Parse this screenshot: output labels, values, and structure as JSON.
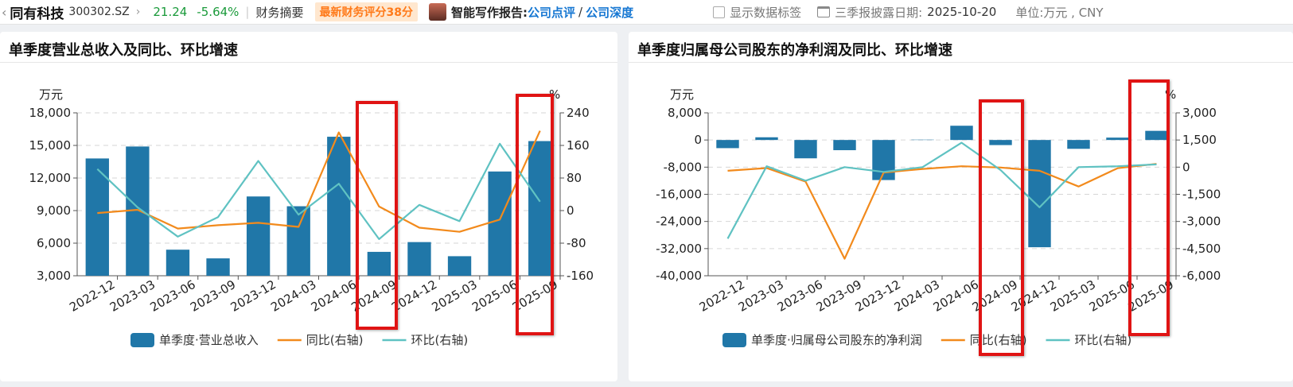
{
  "header": {
    "back_icon": "chevron-left-icon",
    "stock_name": "同有科技",
    "stock_code": "300302.SZ",
    "price": "21.24",
    "change": "-5.64%",
    "summary_link": "财务摘要",
    "score_badge": "最新财务评分38分",
    "ai_label": "智能写作报告:",
    "ai_link1": "公司点评",
    "ai_sep": "/",
    "ai_link2": "公司深度",
    "show_labels": "显示数据标签",
    "date_label": "三季报披露日期:",
    "date_value": "2025-10-20",
    "unit_label": "单位:万元 , CNY",
    "colors": {
      "down": "#1a9a3a",
      "score": "#ff7a1a",
      "link": "#1677d2"
    }
  },
  "chart_data": [
    {
      "type": "bar",
      "title": "单季度营业总收入及同比、环比增速",
      "left_unit": "万元",
      "right_unit": "%",
      "categories": [
        "2022-12",
        "2023-03",
        "2023-06",
        "2023-09",
        "2023-12",
        "2024-03",
        "2024-06",
        "2024-09",
        "2024-12",
        "2025-03",
        "2025-06",
        "2025-09"
      ],
      "ylim": [
        3000,
        18000
      ],
      "yticks": [
        3000,
        6000,
        9000,
        12000,
        15000,
        18000
      ],
      "ytick_labels": [
        "3,000",
        "6,000",
        "9,000",
        "12,000",
        "15,000",
        "18,000"
      ],
      "y2lim": [
        -160,
        240
      ],
      "y2ticks": [
        -160,
        -80,
        0,
        80,
        160,
        240
      ],
      "y2tick_labels": [
        "-160",
        "-80",
        "0",
        "80",
        "160",
        "240"
      ],
      "series": [
        {
          "name": "单季度·营业总收入",
          "type": "bar",
          "axis": "left",
          "color": "#2077a8",
          "values": [
            13800,
            14900,
            5400,
            4600,
            10300,
            9400,
            15800,
            5200,
            6100,
            4800,
            12600,
            15400
          ]
        },
        {
          "name": "同比(右轴)",
          "type": "line",
          "axis": "right",
          "color": "#f28a1c",
          "values": [
            -6,
            2,
            -44,
            -36,
            -30,
            -40,
            192,
            10,
            -42,
            -52,
            -22,
            196
          ]
        },
        {
          "name": "环比(右轴)",
          "type": "line",
          "axis": "right",
          "color": "#5fc2c2",
          "values": [
            102,
            8,
            -64,
            -16,
            122,
            -10,
            66,
            -70,
            14,
            -26,
            164,
            22
          ]
        }
      ],
      "highlighted": [
        "2024-09",
        "2025-09"
      ]
    },
    {
      "type": "bar",
      "title": "单季度归属母公司股东的净利润及同比、环比增速",
      "left_unit": "万元",
      "right_unit": "%",
      "categories": [
        "2022-12",
        "2023-03",
        "2023-06",
        "2023-09",
        "2023-12",
        "2024-03",
        "2024-06",
        "2024-09",
        "2024-12",
        "2025-03",
        "2025-06",
        "2025-09"
      ],
      "ylim": [
        -40000,
        8000
      ],
      "yticks": [
        -40000,
        -32000,
        -24000,
        -16000,
        -8000,
        0,
        8000
      ],
      "ytick_labels": [
        "-40,000",
        "-32,000",
        "-24,000",
        "-16,000",
        "-8,000",
        "0",
        "8,000"
      ],
      "y2lim": [
        -6000,
        3000
      ],
      "y2ticks": [
        -6000,
        -4500,
        -3000,
        -1500,
        0,
        1500,
        3000
      ],
      "y2tick_labels": [
        "-6,000",
        "-4,500",
        "-3,000",
        "-1,500",
        "0",
        "1,500",
        "3,000"
      ],
      "series": [
        {
          "name": "单季度·归属母公司股东的净利润",
          "type": "bar",
          "axis": "left",
          "color": "#2077a8",
          "values": [
            -2400,
            800,
            -5400,
            -3000,
            -11800,
            100,
            4200,
            -1500,
            -31600,
            -2600,
            700,
            2700
          ]
        },
        {
          "name": "同比(右轴)",
          "type": "line",
          "axis": "right",
          "color": "#f28a1c",
          "values": [
            -200,
            -50,
            -800,
            -5060,
            -300,
            -100,
            50,
            -20,
            -200,
            -1070,
            -60,
            180
          ]
        },
        {
          "name": "环比(右轴)",
          "type": "line",
          "axis": "right",
          "color": "#5fc2c2",
          "values": [
            -3950,
            50,
            -750,
            0,
            -260,
            0,
            1350,
            -160,
            -2220,
            0,
            50,
            150
          ]
        }
      ],
      "highlighted": [
        "2024-09",
        "2025-09"
      ]
    }
  ]
}
